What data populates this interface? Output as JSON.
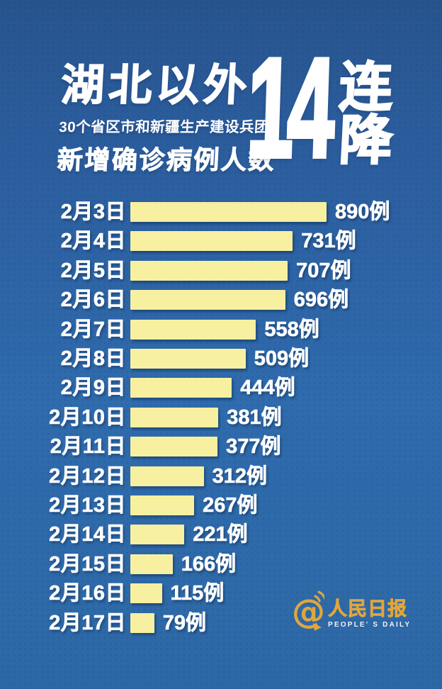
{
  "title": {
    "main": "湖北以外",
    "subtitle": "30个省区市和新疆生产建设兵团",
    "line3": "新增确诊病例人数",
    "big_number": "14",
    "big_suffix_top": "连",
    "big_suffix_bottom": "降"
  },
  "chart_data": {
    "type": "bar",
    "orientation": "horizontal",
    "title": "湖北以外30个省区市和新疆生产建设兵团新增确诊病例人数 14连降",
    "categories": [
      "2月3日",
      "2月4日",
      "2月5日",
      "2月6日",
      "2月7日",
      "2月8日",
      "2月9日",
      "2月10日",
      "2月11日",
      "2月12日",
      "2月13日",
      "2月14日",
      "2月15日",
      "2月16日",
      "2月17日"
    ],
    "values": [
      890,
      731,
      707,
      696,
      558,
      509,
      444,
      381,
      377,
      312,
      267,
      221,
      166,
      115,
      79
    ],
    "unit": "例",
    "max_value": 890,
    "bar_color": "#F7F0A0",
    "label_color": "#FFFFFF",
    "legend": "none",
    "grid": "off"
  },
  "footer": {
    "logo_at_symbol": "@",
    "logo_name_cn": "人民日报",
    "logo_name_en": "PEOPLE' S DAILY",
    "logo_color": "#DFA63E"
  },
  "colors": {
    "background_top": "#27548D",
    "background_bottom": "#2D68A6",
    "bar_fill": "#F7F0A0",
    "text": "#FFFFFF",
    "accent_gold": "#DFA63E"
  }
}
